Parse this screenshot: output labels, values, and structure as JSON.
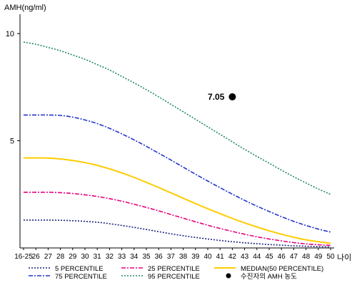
{
  "chart_data": {
    "type": "line",
    "ylabel": "AMH(ng/ml)",
    "xlabel": "나이",
    "ylim": [
      0,
      10.9
    ],
    "yticks": [
      5,
      10
    ],
    "x": [
      "16-25",
      "26",
      "27",
      "28",
      "29",
      "30",
      "31",
      "32",
      "33",
      "34",
      "35",
      "36",
      "37",
      "38",
      "39",
      "40",
      "41",
      "42",
      "43",
      "44",
      "45",
      "46",
      "47",
      "48",
      "49",
      "50"
    ],
    "grid": false,
    "legend_position": "bottom",
    "series": [
      {
        "name": "5 PERCENTILE",
        "color": "#1a237e",
        "dash": "2,2",
        "values": [
          1.3,
          1.3,
          1.3,
          1.29,
          1.27,
          1.24,
          1.2,
          1.13,
          1.05,
          0.96,
          0.86,
          0.76,
          0.66,
          0.57,
          0.49,
          0.42,
          0.35,
          0.29,
          0.24,
          0.2,
          0.16,
          0.13,
          0.1,
          0.08,
          0.06,
          0.05
        ]
      },
      {
        "name": "25 PERCENTILE",
        "color": "#e6007e",
        "dash": "6,2,2,2",
        "values": [
          2.6,
          2.6,
          2.6,
          2.58,
          2.54,
          2.48,
          2.4,
          2.3,
          2.18,
          2.04,
          1.89,
          1.73,
          1.56,
          1.39,
          1.22,
          1.06,
          0.91,
          0.77,
          0.64,
          0.52,
          0.42,
          0.33,
          0.25,
          0.19,
          0.15,
          0.12
        ]
      },
      {
        "name": "MEDIAN(50 PERCENTILE)",
        "color": "#ffcc00",
        "dash": "",
        "values": [
          4.2,
          4.2,
          4.19,
          4.15,
          4.08,
          3.98,
          3.85,
          3.69,
          3.5,
          3.29,
          3.06,
          2.82,
          2.57,
          2.32,
          2.07,
          1.83,
          1.6,
          1.38,
          1.17,
          0.98,
          0.8,
          0.64,
          0.5,
          0.38,
          0.29,
          0.22
        ]
      },
      {
        "name": "75 PERCENTILE",
        "color": "#2233cc",
        "dash": "6,2,2,2",
        "values": [
          6.2,
          6.2,
          6.2,
          6.18,
          6.1,
          5.97,
          5.8,
          5.58,
          5.32,
          5.04,
          4.74,
          4.42,
          4.1,
          3.77,
          3.44,
          3.12,
          2.81,
          2.51,
          2.22,
          1.95,
          1.7,
          1.46,
          1.24,
          1.05,
          0.88,
          0.74
        ]
      },
      {
        "name": "95 PERCENTILE",
        "color": "#1f8a5a",
        "dash": "2,2",
        "values": [
          9.6,
          9.5,
          9.35,
          9.2,
          9.0,
          8.8,
          8.55,
          8.3,
          8.0,
          7.7,
          7.38,
          7.05,
          6.7,
          6.35,
          6.0,
          5.65,
          5.3,
          4.95,
          4.6,
          4.27,
          3.95,
          3.63,
          3.32,
          3.03,
          2.75,
          2.5
        ]
      }
    ],
    "marker": {
      "name": "수진자의 AMH 농도",
      "x": "42",
      "value": 7.05,
      "label": "7.05",
      "color": "#000000"
    },
    "legend": [
      {
        "name": "5 PERCENTILE",
        "color": "#1a237e",
        "dash": "2,2",
        "type": "line"
      },
      {
        "name": "25 PERCENTILE",
        "color": "#e6007e",
        "dash": "6,2,2,2",
        "type": "line"
      },
      {
        "name": "MEDIAN(50 PERCENTILE)",
        "color": "#ffcc00",
        "dash": "",
        "type": "line"
      },
      {
        "name": "75 PERCENTILE",
        "color": "#2233cc",
        "dash": "6,2,2,2",
        "type": "line"
      },
      {
        "name": "95 PERCENTILE",
        "color": "#1f8a5a",
        "dash": "2,2",
        "type": "line"
      },
      {
        "name": "수진자의 AMH 농도",
        "color": "#000000",
        "type": "marker"
      }
    ]
  }
}
